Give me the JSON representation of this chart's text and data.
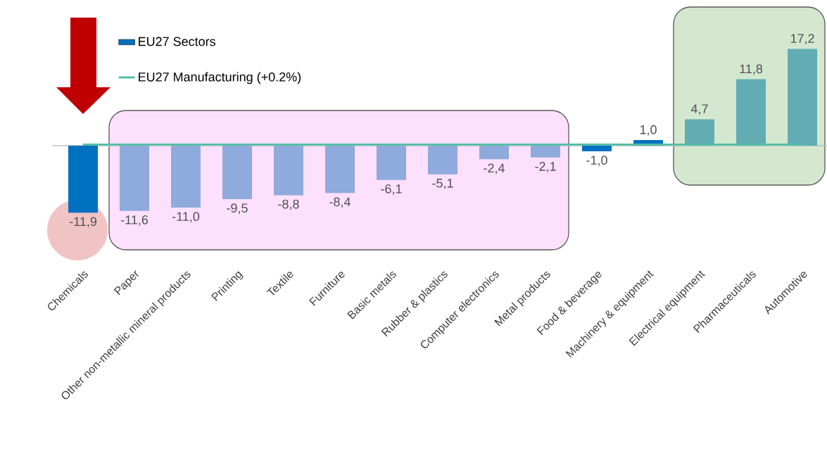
{
  "chart_data": {
    "type": "bar",
    "categories": [
      "Chemicals",
      "Paper",
      "Other non-metallic mineral products",
      "Printing",
      "Textile",
      "Furniture",
      "Basic metals",
      "Rubber & plastics",
      "Computer electronics",
      "Metal products",
      "Food & beverage",
      "Machinery & equipment",
      "Electrical equipment",
      "Pharmaceuticals",
      "Automotive"
    ],
    "series": [
      {
        "name": "EU27 Sectors",
        "color": "#0070c0",
        "colors": [
          "#0070c0",
          "#8faadc",
          "#8faadc",
          "#8faadc",
          "#8faadc",
          "#8faadc",
          "#8faadc",
          "#8faadc",
          "#8faadc",
          "#8faadc",
          "#0070c0",
          "#0070c0",
          "#62adb4",
          "#62adb4",
          "#62adb4"
        ],
        "values": [
          -11.9,
          -11.6,
          -11.0,
          -9.5,
          -8.8,
          -8.4,
          -6.1,
          -5.1,
          -2.4,
          -2.1,
          -1.0,
          1.0,
          4.7,
          11.8,
          17.2
        ],
        "value_labels": [
          "-11,9",
          "-11,6",
          "-11,0",
          "-9,5",
          "-8,8",
          "-8,4",
          "-6,1",
          "-5,1",
          "-2,4",
          "-2,1",
          "-1,0",
          "1,0",
          "4,7",
          "11,8",
          "17,2"
        ]
      },
      {
        "name": "EU27 Manufacturing (+0.2%)",
        "type": "line",
        "color": "#4fbfa5",
        "values": [
          0.2,
          0.2,
          0.2,
          0.2,
          0.2,
          0.2,
          0.2,
          0.2,
          0.2,
          0.2,
          0.2,
          0.2,
          0.2,
          0.2,
          0.2
        ]
      }
    ],
    "legend": "top left",
    "tick_labels": "x"
  }
}
